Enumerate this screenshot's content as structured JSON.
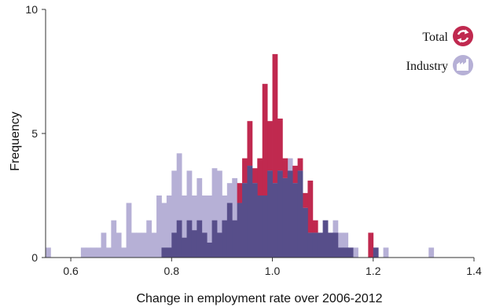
{
  "chart_data": {
    "type": "bar",
    "subtype": "overlaid-histogram",
    "xlabel": "Change in employment rate over 2006-2012",
    "ylabel": "Frequency",
    "xlim": [
      0.55,
      1.4
    ],
    "ylim": [
      0,
      10
    ],
    "xticks": [
      "0.6",
      "0.8",
      "1.0",
      "1.2",
      "1.4"
    ],
    "yticks": [
      "0",
      "5",
      "10"
    ],
    "bin_width": 0.01,
    "legend_position": "top-right",
    "series": [
      {
        "name": "Total",
        "color": "#c0294f",
        "icon": "recycle-icon",
        "bins": [
          {
            "x": 0.78,
            "y": 0.4
          },
          {
            "x": 0.79,
            "y": 0.4
          },
          {
            "x": 0.8,
            "y": 1.0
          },
          {
            "x": 0.81,
            "y": 1.5
          },
          {
            "x": 0.82,
            "y": 0.8
          },
          {
            "x": 0.83,
            "y": 1.5
          },
          {
            "x": 0.84,
            "y": 1.1
          },
          {
            "x": 0.85,
            "y": 1.5
          },
          {
            "x": 0.86,
            "y": 1.0
          },
          {
            "x": 0.87,
            "y": 0.6
          },
          {
            "x": 0.88,
            "y": 1.5
          },
          {
            "x": 0.89,
            "y": 1.0
          },
          {
            "x": 0.9,
            "y": 1.5
          },
          {
            "x": 0.91,
            "y": 2.2
          },
          {
            "x": 0.92,
            "y": 1.5
          },
          {
            "x": 0.93,
            "y": 3.0
          },
          {
            "x": 0.94,
            "y": 4.0
          },
          {
            "x": 0.95,
            "y": 5.5
          },
          {
            "x": 0.96,
            "y": 3.6
          },
          {
            "x": 0.97,
            "y": 4.0
          },
          {
            "x": 0.98,
            "y": 7.0
          },
          {
            "x": 0.99,
            "y": 5.5
          },
          {
            "x": 1.0,
            "y": 8.2
          },
          {
            "x": 1.01,
            "y": 5.6
          },
          {
            "x": 1.02,
            "y": 4.0
          },
          {
            "x": 1.03,
            "y": 3.5
          },
          {
            "x": 1.04,
            "y": 3.7
          },
          {
            "x": 1.05,
            "y": 4.0
          },
          {
            "x": 1.06,
            "y": 2.6
          },
          {
            "x": 1.07,
            "y": 3.1
          },
          {
            "x": 1.08,
            "y": 1.5
          },
          {
            "x": 1.09,
            "y": 1.0
          },
          {
            "x": 1.1,
            "y": 1.5
          },
          {
            "x": 1.11,
            "y": 1.0
          },
          {
            "x": 1.12,
            "y": 1.0
          },
          {
            "x": 1.13,
            "y": 0.4
          },
          {
            "x": 1.14,
            "y": 0.4
          },
          {
            "x": 1.15,
            "y": 0.4
          },
          {
            "x": 1.19,
            "y": 1.0
          },
          {
            "x": 1.2,
            "y": 0.4
          }
        ]
      },
      {
        "name": "Industry",
        "color": "#b6b0d6",
        "icon": "factory-icon",
        "bins": [
          {
            "x": 0.55,
            "y": 0.4
          },
          {
            "x": 0.62,
            "y": 0.4
          },
          {
            "x": 0.63,
            "y": 0.4
          },
          {
            "x": 0.64,
            "y": 0.4
          },
          {
            "x": 0.65,
            "y": 0.4
          },
          {
            "x": 0.66,
            "y": 1.0
          },
          {
            "x": 0.67,
            "y": 0.4
          },
          {
            "x": 0.68,
            "y": 1.5
          },
          {
            "x": 0.69,
            "y": 1.0
          },
          {
            "x": 0.7,
            "y": 0.4
          },
          {
            "x": 0.71,
            "y": 2.2
          },
          {
            "x": 0.72,
            "y": 1.0
          },
          {
            "x": 0.73,
            "y": 1.0
          },
          {
            "x": 0.74,
            "y": 1.0
          },
          {
            "x": 0.75,
            "y": 1.5
          },
          {
            "x": 0.76,
            "y": 1.0
          },
          {
            "x": 0.77,
            "y": 2.5
          },
          {
            "x": 0.78,
            "y": 2.2
          },
          {
            "x": 0.79,
            "y": 2.5
          },
          {
            "x": 0.8,
            "y": 3.5
          },
          {
            "x": 0.81,
            "y": 4.2
          },
          {
            "x": 0.82,
            "y": 2.5
          },
          {
            "x": 0.83,
            "y": 3.5
          },
          {
            "x": 0.84,
            "y": 2.5
          },
          {
            "x": 0.85,
            "y": 3.2
          },
          {
            "x": 0.86,
            "y": 2.5
          },
          {
            "x": 0.87,
            "y": 2.5
          },
          {
            "x": 0.88,
            "y": 3.6
          },
          {
            "x": 0.89,
            "y": 3.5
          },
          {
            "x": 0.9,
            "y": 2.5
          },
          {
            "x": 0.91,
            "y": 3.0
          },
          {
            "x": 0.92,
            "y": 3.2
          },
          {
            "x": 0.93,
            "y": 2.2
          },
          {
            "x": 0.94,
            "y": 3.0
          },
          {
            "x": 0.95,
            "y": 3.7
          },
          {
            "x": 0.96,
            "y": 3.0
          },
          {
            "x": 0.97,
            "y": 2.5
          },
          {
            "x": 0.98,
            "y": 2.5
          },
          {
            "x": 0.99,
            "y": 3.5
          },
          {
            "x": 1.0,
            "y": 3.0
          },
          {
            "x": 1.01,
            "y": 3.5
          },
          {
            "x": 1.02,
            "y": 3.2
          },
          {
            "x": 1.03,
            "y": 4.0
          },
          {
            "x": 1.04,
            "y": 3.0
          },
          {
            "x": 1.05,
            "y": 3.5
          },
          {
            "x": 1.06,
            "y": 2.0
          },
          {
            "x": 1.07,
            "y": 1.0
          },
          {
            "x": 1.08,
            "y": 1.0
          },
          {
            "x": 1.09,
            "y": 1.0
          },
          {
            "x": 1.1,
            "y": 1.5
          },
          {
            "x": 1.11,
            "y": 1.0
          },
          {
            "x": 1.12,
            "y": 1.5
          },
          {
            "x": 1.13,
            "y": 1.0
          },
          {
            "x": 1.14,
            "y": 1.0
          },
          {
            "x": 1.15,
            "y": 0.4
          },
          {
            "x": 1.16,
            "y": 0.4
          },
          {
            "x": 1.2,
            "y": 0.4
          },
          {
            "x": 1.22,
            "y": 0.4
          },
          {
            "x": 1.31,
            "y": 0.4
          }
        ]
      }
    ],
    "overlap_color": "#574e8a"
  }
}
